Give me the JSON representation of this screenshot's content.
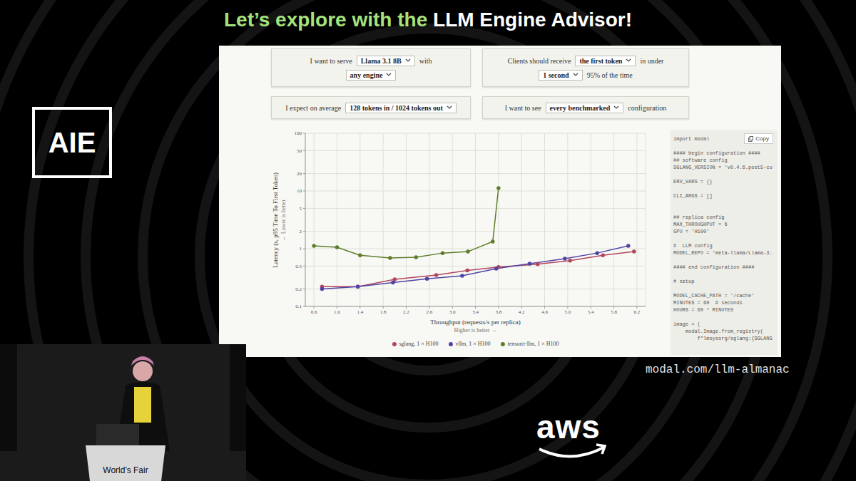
{
  "slide": {
    "title_part1": "Let’s explore with the",
    "title_part2": "LLM Engine Advisor!",
    "logo": "AIE",
    "url": "modal.com/llm-almanac",
    "sponsor": "aws",
    "podium": "World's Fair"
  },
  "controls": [
    {
      "lines": [
        [
          {
            "text": "I want to serve"
          },
          {
            "select": "Llama 3.1 8B"
          },
          {
            "text": "with"
          }
        ],
        [
          {
            "select": "any engine"
          }
        ]
      ]
    },
    {
      "lines": [
        [
          {
            "text": "Clients should receive"
          },
          {
            "select": "the first token"
          },
          {
            "text": "in under"
          }
        ],
        [
          {
            "select": "1 second"
          },
          {
            "text": "95% of the time"
          }
        ]
      ]
    },
    {
      "lines": [
        [
          {
            "text": "I expect on average"
          },
          {
            "select": "128 tokens in / 1024 tokens out"
          }
        ]
      ]
    },
    {
      "lines": [
        [
          {
            "text": "I want to see"
          },
          {
            "select": "every benchmarked"
          },
          {
            "text": "configuration"
          }
        ]
      ]
    }
  ],
  "code": {
    "button": "Copy",
    "text": "import modal\n\n#### begin configuration ####\n## software config\nSGLANG_VERSION = 'v0.4.6.post5-cu\n\nENV_VARS = {}\n\nCLI_ARGS = []\n\n\n## replica config\nMAX_THROUGHPUT = 6\nGPU = 'H100'\n\n#  LLM config\nMODEL_REPO = 'meta-llama/Llama-3.\n\n#### end configuration ####\n\n# setup\n\nMODEL_CACHE_PATH = '/cache'\nMINUTES = 60  # seconds\nHOURS = 60 * MINUTES\n\nimage = (\n    modal.Image.from_registry(\n        f\"lmsysorg/sglang:{SGLANG"
  },
  "chart_data": {
    "type": "line",
    "x_label": "Throughput (requests/s per replica)",
    "x_note": "Higher is better →",
    "y_label": "Latency (s, p95 Time To First Token)",
    "y_note": "← Lower is better",
    "log": "y",
    "grid": true,
    "legend": "bottom",
    "marker": "circle",
    "xlim": [
      0.45,
      6.35
    ],
    "xticks": [
      0.6,
      {
        "value": 1,
        "label": "1.0"
      },
      1.4,
      1.8,
      2.2,
      2.6,
      {
        "value": 3,
        "label": "3.0"
      },
      3.4,
      3.8,
      4.2,
      4.6,
      {
        "value": 5,
        "label": "5.0"
      },
      5.4,
      5.8,
      6.2
    ],
    "ylim": [
      0.1,
      100
    ],
    "yticks": [
      0.1,
      0.2,
      0.5,
      1,
      2,
      5,
      10,
      20,
      50,
      100
    ],
    "series": [
      {
        "name": "sglang, 1 × H100",
        "color": "#b0465c",
        "x": [
          0.74,
          1.36,
          2.0,
          2.72,
          3.26,
          3.8,
          4.48,
          5.04,
          5.61,
          6.15
        ],
        "values": [
          0.22,
          0.22,
          0.295,
          0.35,
          0.42,
          0.48,
          0.54,
          0.62,
          0.77,
          0.89
        ]
      },
      {
        "name": "vllm, 1 × H100",
        "color": "#4f43a6",
        "x": [
          0.74,
          1.36,
          1.97,
          2.56,
          3.17,
          3.76,
          4.34,
          4.95,
          5.51,
          6.05
        ],
        "values": [
          0.2,
          0.22,
          0.26,
          0.3,
          0.34,
          0.45,
          0.55,
          0.67,
          0.84,
          1.12
        ]
      },
      {
        "name": "tensorrt-llm, 1 × H100",
        "color": "#5e7d2b",
        "x": [
          0.6,
          1.0,
          1.4,
          1.92,
          2.37,
          2.83,
          3.27,
          3.7,
          3.8
        ],
        "values": [
          1.12,
          1.06,
          0.77,
          0.69,
          0.71,
          0.84,
          0.89,
          1.33,
          11.2
        ]
      }
    ]
  }
}
